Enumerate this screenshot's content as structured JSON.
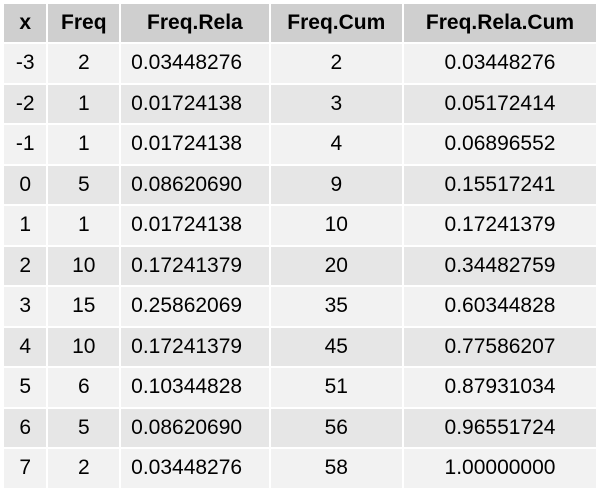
{
  "table": {
    "headers": [
      "x",
      "Freq",
      "Freq.Rela",
      "Freq.Cum",
      "Freq.Rela.Cum"
    ],
    "rows": [
      [
        "-3",
        "2",
        "0.03448276",
        "2",
        "0.03448276"
      ],
      [
        "-2",
        "1",
        "0.01724138",
        "3",
        "0.05172414"
      ],
      [
        "-1",
        "1",
        "0.01724138",
        "4",
        "0.06896552"
      ],
      [
        "0",
        "5",
        "0.08620690",
        "9",
        "0.15517241"
      ],
      [
        "1",
        "1",
        "0.01724138",
        "10",
        "0.17241379"
      ],
      [
        "2",
        "10",
        "0.17241379",
        "20",
        "0.34482759"
      ],
      [
        "3",
        "15",
        "0.25862069",
        "35",
        "0.60344828"
      ],
      [
        "4",
        "10",
        "0.17241379",
        "45",
        "0.77586207"
      ],
      [
        "5",
        "6",
        "0.10344828",
        "51",
        "0.87931034"
      ],
      [
        "6",
        "5",
        "0.08620690",
        "56",
        "0.96551724"
      ],
      [
        "7",
        "2",
        "0.03448276",
        "58",
        "1.00000000"
      ]
    ]
  }
}
